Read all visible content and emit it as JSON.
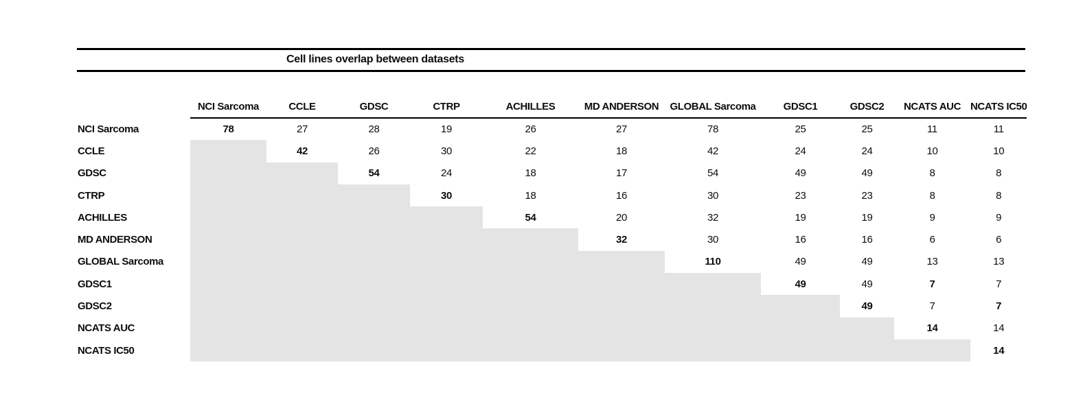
{
  "title": "Cell lines overlap between datasets",
  "table": {
    "columns": [
      "NCI Sarcoma",
      "CCLE",
      "GDSC",
      "CTRP",
      "ACHILLES",
      "MD ANDERSON",
      "GLOBAL Sarcoma",
      "GDSC1",
      "GDSC2",
      "NCATS AUC",
      "NCATS IC50"
    ],
    "rows": [
      {
        "label": "NCI Sarcoma",
        "values": [
          78,
          27,
          28,
          19,
          26,
          27,
          78,
          25,
          25,
          11,
          11
        ],
        "bold": [
          0
        ]
      },
      {
        "label": "CCLE",
        "values": [
          null,
          42,
          26,
          30,
          22,
          18,
          42,
          24,
          24,
          10,
          10
        ],
        "bold": [
          1
        ]
      },
      {
        "label": "GDSC",
        "values": [
          null,
          null,
          54,
          24,
          18,
          17,
          54,
          49,
          49,
          8,
          8
        ],
        "bold": [
          2
        ]
      },
      {
        "label": "CTRP",
        "values": [
          null,
          null,
          null,
          30,
          18,
          16,
          30,
          23,
          23,
          8,
          8
        ],
        "bold": [
          3
        ]
      },
      {
        "label": "ACHILLES",
        "values": [
          null,
          null,
          null,
          null,
          54,
          20,
          32,
          19,
          19,
          9,
          9
        ],
        "bold": [
          4
        ]
      },
      {
        "label": "MD ANDERSON",
        "values": [
          null,
          null,
          null,
          null,
          null,
          32,
          30,
          16,
          16,
          6,
          6
        ],
        "bold": [
          5
        ]
      },
      {
        "label": "GLOBAL Sarcoma",
        "values": [
          null,
          null,
          null,
          null,
          null,
          null,
          110,
          49,
          49,
          13,
          13
        ],
        "bold": [
          6
        ]
      },
      {
        "label": "GDSC1",
        "values": [
          null,
          null,
          null,
          null,
          null,
          null,
          null,
          49,
          49,
          7,
          7
        ],
        "bold": [
          7,
          9
        ]
      },
      {
        "label": "GDSC2",
        "values": [
          null,
          null,
          null,
          null,
          null,
          null,
          null,
          null,
          49,
          7,
          7
        ],
        "bold": [
          8,
          10
        ]
      },
      {
        "label": "NCATS AUC",
        "values": [
          null,
          null,
          null,
          null,
          null,
          null,
          null,
          null,
          null,
          14,
          14
        ],
        "bold": [
          9
        ]
      },
      {
        "label": "NCATS IC50",
        "values": [
          null,
          null,
          null,
          null,
          null,
          null,
          null,
          null,
          null,
          null,
          14
        ],
        "bold": [
          10
        ]
      }
    ]
  },
  "chart_data": {
    "type": "table",
    "title": "Cell lines overlap between datasets",
    "note": "Upper-triangular overlap-count matrix; diagonal (bold) is dataset size; lower triangle shaded gray",
    "categories": [
      "NCI Sarcoma",
      "CCLE",
      "GDSC",
      "CTRP",
      "ACHILLES",
      "MD ANDERSON",
      "GLOBAL Sarcoma",
      "GDSC1",
      "GDSC2",
      "NCATS AUC",
      "NCATS IC50"
    ],
    "series": [
      {
        "name": "NCI Sarcoma",
        "values": [
          78,
          27,
          28,
          19,
          26,
          27,
          78,
          25,
          25,
          11,
          11
        ]
      },
      {
        "name": "CCLE",
        "values": [
          null,
          42,
          26,
          30,
          22,
          18,
          42,
          24,
          24,
          10,
          10
        ]
      },
      {
        "name": "GDSC",
        "values": [
          null,
          null,
          54,
          24,
          18,
          17,
          54,
          49,
          49,
          8,
          8
        ]
      },
      {
        "name": "CTRP",
        "values": [
          null,
          null,
          null,
          30,
          18,
          16,
          30,
          23,
          23,
          8,
          8
        ]
      },
      {
        "name": "ACHILLES",
        "values": [
          null,
          null,
          null,
          null,
          54,
          20,
          32,
          19,
          19,
          9,
          9
        ]
      },
      {
        "name": "MD ANDERSON",
        "values": [
          null,
          null,
          null,
          null,
          null,
          32,
          30,
          16,
          16,
          6,
          6
        ]
      },
      {
        "name": "GLOBAL Sarcoma",
        "values": [
          null,
          null,
          null,
          null,
          null,
          null,
          110,
          49,
          49,
          13,
          13
        ]
      },
      {
        "name": "GDSC1",
        "values": [
          null,
          null,
          null,
          null,
          null,
          null,
          null,
          49,
          49,
          7,
          7
        ]
      },
      {
        "name": "GDSC2",
        "values": [
          null,
          null,
          null,
          null,
          null,
          null,
          null,
          null,
          49,
          7,
          7
        ]
      },
      {
        "name": "NCATS AUC",
        "values": [
          null,
          null,
          null,
          null,
          null,
          null,
          null,
          null,
          null,
          14,
          14
        ]
      },
      {
        "name": "NCATS IC50",
        "values": [
          null,
          null,
          null,
          null,
          null,
          null,
          null,
          null,
          null,
          null,
          14
        ]
      }
    ]
  },
  "colors": {
    "shaded_cell": "#e5e4e4",
    "rule": "#000000",
    "text": "#0d0d0d"
  }
}
